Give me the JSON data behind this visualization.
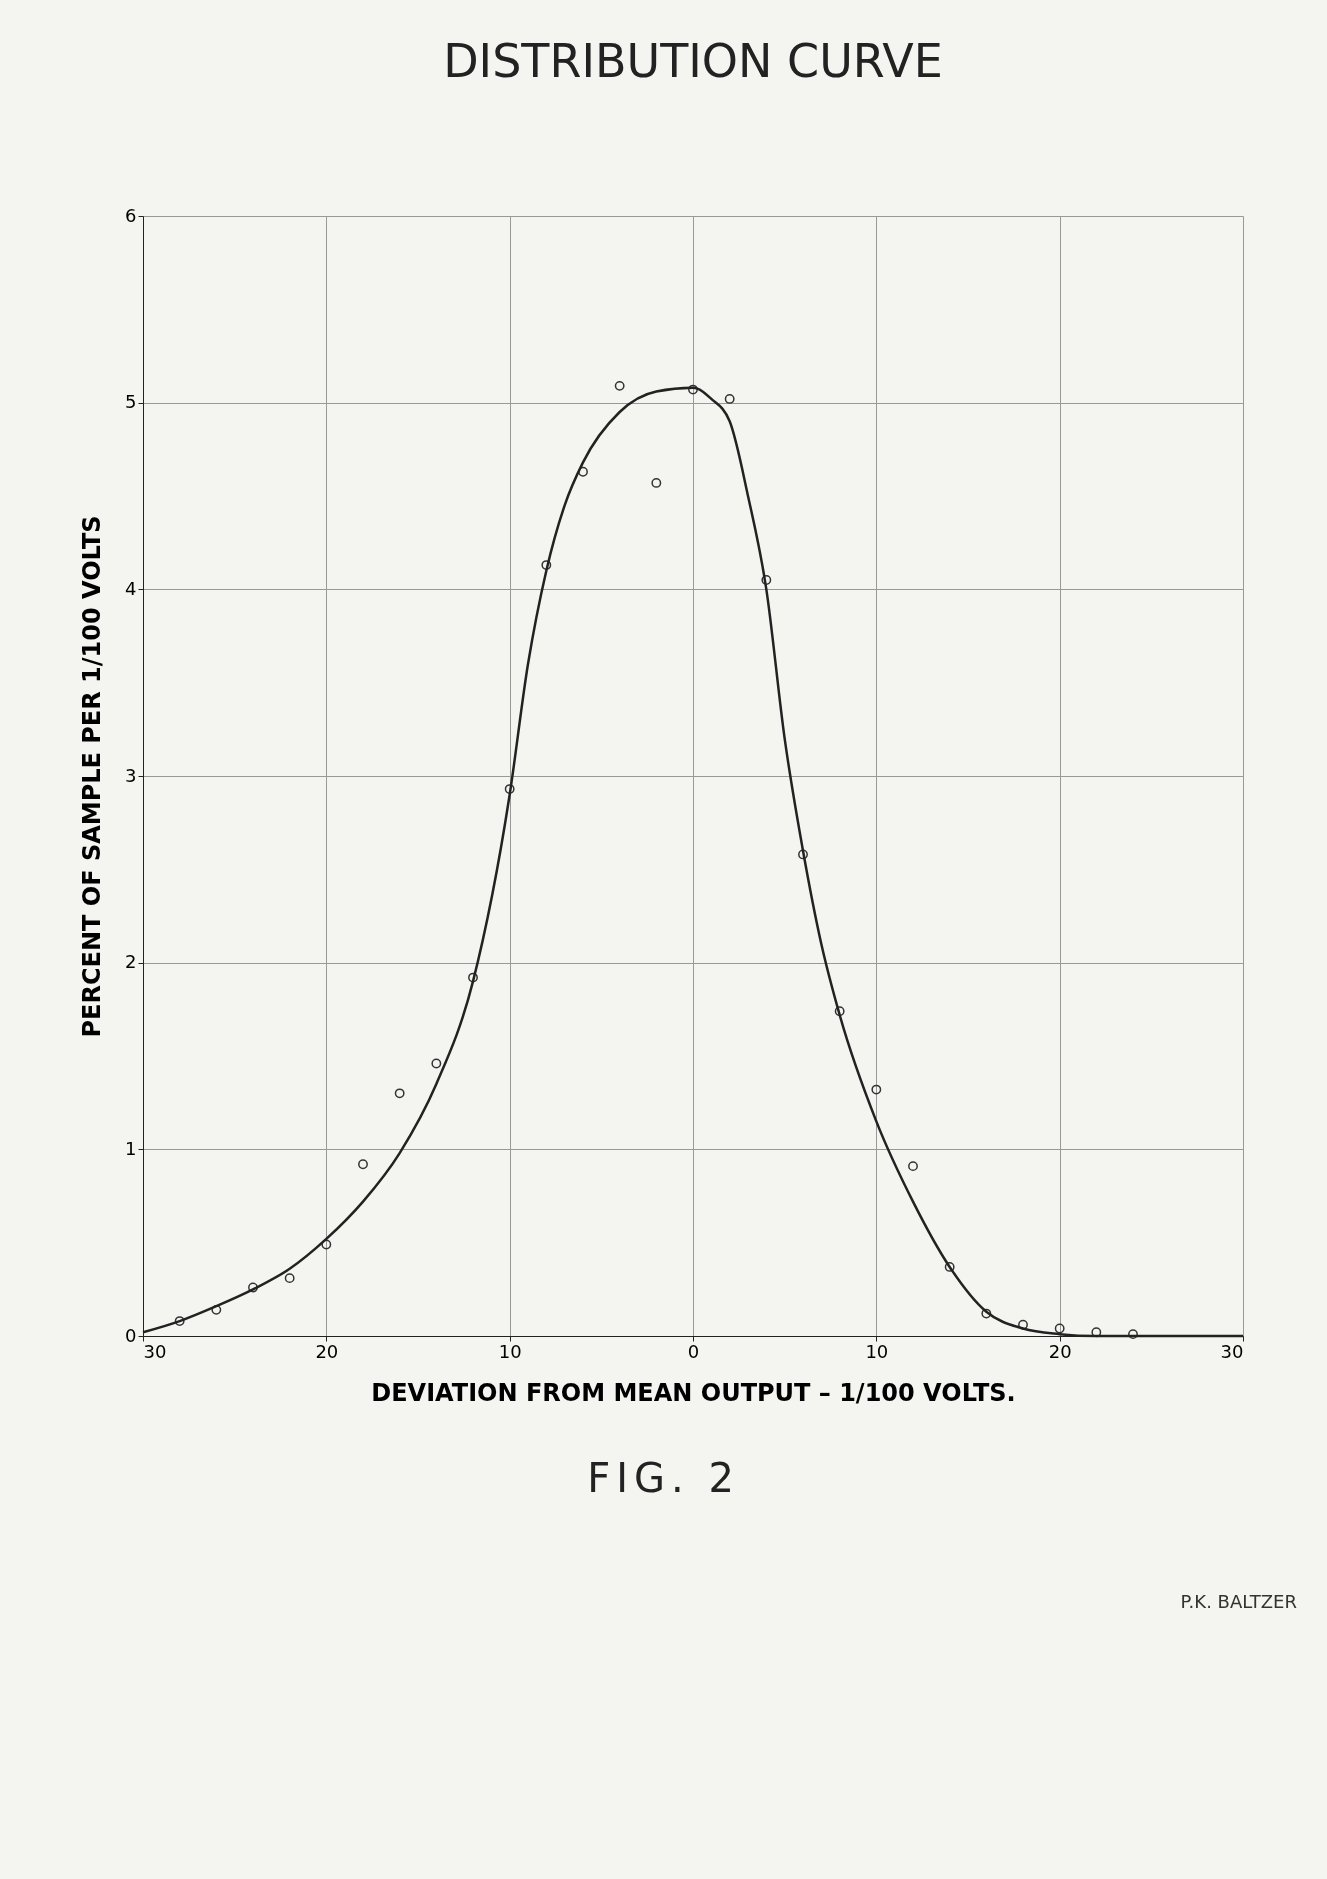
{
  "chart_data": {
    "type": "scatter",
    "title": "DISTRIBUTION CURVE",
    "xlabel": "DEVIATION FROM MEAN OUTPUT – 1/100 VOLTS.",
    "ylabel": "PERCENT OF SAMPLE PER 1/100 VOLTS",
    "annotations": [
      "FIG. 2",
      "P.K. BALTZER"
    ],
    "xlim": [
      -30,
      30
    ],
    "xticks": [
      {
        "value": -30,
        "label": "30"
      },
      {
        "value": -20,
        "label": "20"
      },
      {
        "value": -10,
        "label": "10"
      },
      0,
      10,
      20,
      30
    ],
    "ylim": [
      0,
      6
    ],
    "yticks": [
      0,
      1,
      2,
      3,
      4,
      5,
      6
    ],
    "grid": true,
    "series": [
      {
        "marker": "circle",
        "color": "#333333",
        "x": [
          -28,
          -26,
          -24,
          -22,
          -20,
          -18,
          -16,
          -14,
          -12,
          -10,
          -8,
          -6,
          -4,
          -2,
          0,
          2,
          4,
          6,
          8,
          10,
          12,
          14,
          16,
          18,
          20,
          22,
          24
        ],
        "values": [
          0.08,
          0.14,
          0.26,
          0.31,
          0.49,
          0.92,
          1.3,
          1.46,
          1.92,
          2.93,
          4.13,
          4.63,
          5.09,
          4.57,
          5.07,
          5.02,
          4.05,
          2.58,
          1.74,
          1.32,
          0.91,
          0.37,
          0.12,
          0.06,
          0.04,
          0.02,
          0.01
        ]
      },
      {
        "type": "line",
        "color": "#222222",
        "line_style": "solid",
        "x": [
          -30,
          -28,
          -26,
          -24,
          -22,
          -20,
          -18,
          -16,
          -14,
          -12,
          -10,
          -9,
          -8,
          -7,
          -6,
          -4,
          -2,
          0,
          1,
          2,
          3,
          4,
          5,
          6,
          7,
          8,
          10,
          12,
          14,
          16,
          18,
          20,
          22,
          30
        ],
        "values": [
          0.02,
          0.08,
          0.16,
          0.25,
          0.36,
          0.52,
          0.72,
          0.98,
          1.35,
          1.9,
          2.9,
          3.6,
          4.1,
          4.45,
          4.68,
          4.95,
          5.06,
          5.08,
          5.02,
          4.9,
          4.5,
          4.0,
          3.2,
          2.6,
          2.1,
          1.72,
          1.15,
          0.72,
          0.37,
          0.13,
          0.04,
          0.01,
          0,
          0
        ]
      }
    ]
  }
}
